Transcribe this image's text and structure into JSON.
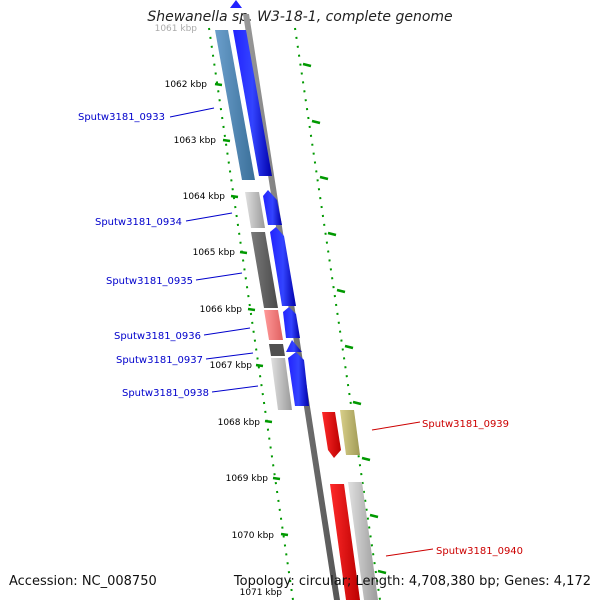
{
  "title": "Shewanella sp. W3-18-1, complete genome",
  "footer": {
    "accession": "Accession: NC_008750",
    "topology": "Topology: circular; Length: 4,708,380 bp; Genes: 4,172"
  },
  "scale_labels": [
    "1061 kbp",
    "1062 kbp",
    "1063 kbp",
    "1064 kbp",
    "1065 kbp",
    "1066 kbp",
    "1067 kbp",
    "1068 kbp",
    "1069 kbp",
    "1070 kbp",
    "1071 kbp"
  ],
  "genes": [
    {
      "id": "Sputw3181_0933",
      "strand": "forward",
      "label_color": "#0000cc"
    },
    {
      "id": "Sputw3181_0934",
      "strand": "forward",
      "label_color": "#0000cc"
    },
    {
      "id": "Sputw3181_0935",
      "strand": "forward",
      "label_color": "#0000cc"
    },
    {
      "id": "Sputw3181_0936",
      "strand": "forward",
      "label_color": "#0000cc"
    },
    {
      "id": "Sputw3181_0937",
      "strand": "forward",
      "label_color": "#0000cc"
    },
    {
      "id": "Sputw3181_0938",
      "strand": "forward",
      "label_color": "#0000cc"
    },
    {
      "id": "Sputw3181_0939",
      "strand": "reverse",
      "label_color": "#cc0000"
    },
    {
      "id": "Sputw3181_0940",
      "strand": "reverse",
      "label_color": "#cc0000"
    }
  ],
  "colors": {
    "forward_cds": "#0000ff",
    "reverse_cds": "#ff0000",
    "backbone": "#808080",
    "tick": "#008000"
  }
}
